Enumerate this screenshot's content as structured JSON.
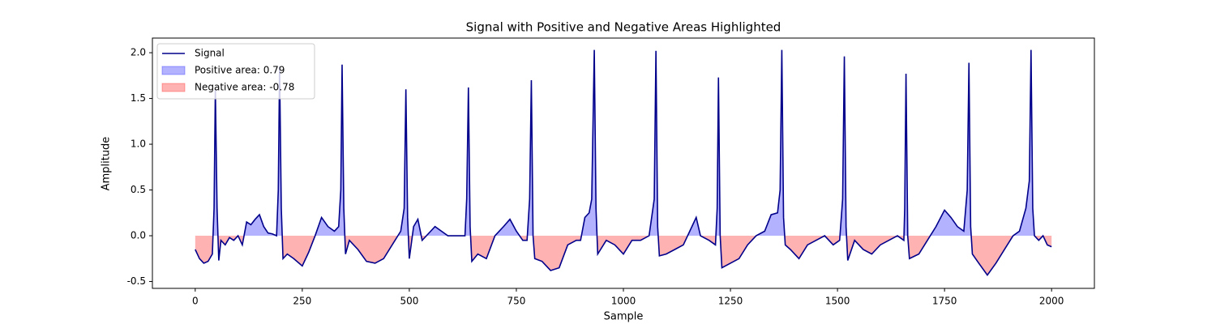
{
  "chart_data": {
    "type": "line",
    "title": "Signal with Positive and Negative Areas Highlighted",
    "x_label": "Sample",
    "y_label": "Amplitude",
    "xlim": [
      -100,
      2100
    ],
    "ylim": [
      -0.575,
      2.16
    ],
    "xticks": [
      0,
      250,
      500,
      750,
      1000,
      1250,
      1500,
      1750,
      2000
    ],
    "yticks": [
      -0.5,
      {
        "value": 0,
        "label": "0.0"
      },
      0.5,
      {
        "value": 1,
        "label": "1.0"
      },
      1.5,
      {
        "value": 2,
        "label": "2.0"
      }
    ],
    "legend": "upper left",
    "x": [
      0,
      10,
      20,
      30,
      40,
      44,
      47,
      51,
      55,
      60,
      70,
      80,
      90,
      100,
      110,
      120,
      130,
      140,
      150,
      160,
      170,
      180,
      190,
      194,
      197,
      201,
      205,
      215,
      230,
      250,
      265,
      280,
      295,
      310,
      325,
      335,
      340,
      343,
      347,
      351,
      360,
      380,
      400,
      420,
      440,
      460,
      480,
      488,
      492,
      496,
      500,
      510,
      520,
      530,
      550,
      560,
      575,
      590,
      610,
      630,
      634,
      638,
      642,
      646,
      660,
      680,
      700,
      720,
      735,
      750,
      765,
      775,
      781,
      785,
      789,
      793,
      810,
      830,
      850,
      870,
      890,
      900,
      910,
      920,
      926,
      932,
      936,
      940,
      960,
      980,
      1000,
      1020,
      1040,
      1060,
      1072,
      1076,
      1080,
      1084,
      1100,
      1120,
      1140,
      1160,
      1170,
      1180,
      1200,
      1215,
      1219,
      1222,
      1226,
      1230,
      1250,
      1270,
      1290,
      1310,
      1330,
      1345,
      1360,
      1366,
      1370,
      1374,
      1378,
      1390,
      1410,
      1430,
      1450,
      1470,
      1490,
      1505,
      1512,
      1516,
      1520,
      1524,
      1540,
      1560,
      1580,
      1600,
      1620,
      1640,
      1655,
      1657,
      1660,
      1664,
      1668,
      1690,
      1710,
      1730,
      1750,
      1765,
      1780,
      1795,
      1803,
      1807,
      1811,
      1815,
      1830,
      1850,
      1870,
      1890,
      1910,
      1925,
      1940,
      1948,
      1952,
      1956,
      1960,
      1970,
      1980,
      1990,
      2000
    ],
    "series": [
      {
        "name": "Signal",
        "color": "#00008b",
        "values": [
          -0.15,
          -0.25,
          -0.3,
          -0.28,
          -0.2,
          0.3,
          1.6,
          0.3,
          -0.27,
          -0.05,
          -0.1,
          -0.02,
          -0.05,
          0.0,
          -0.1,
          0.15,
          0.12,
          0.18,
          0.23,
          0.1,
          0.03,
          0.02,
          0.0,
          0.5,
          1.85,
          0.3,
          -0.25,
          -0.2,
          -0.25,
          -0.33,
          -0.18,
          0.0,
          0.2,
          0.1,
          0.05,
          0.1,
          0.5,
          1.87,
          0.3,
          -0.2,
          -0.05,
          -0.15,
          -0.28,
          -0.3,
          -0.25,
          -0.1,
          0.05,
          0.3,
          1.6,
          0.2,
          -0.25,
          0.1,
          0.18,
          -0.05,
          0.05,
          0.1,
          0.05,
          0.0,
          0.0,
          0.0,
          0.4,
          1.62,
          0.1,
          -0.28,
          -0.2,
          -0.25,
          0.0,
          0.1,
          0.18,
          0.05,
          -0.05,
          -0.05,
          0.4,
          1.7,
          0.0,
          -0.25,
          -0.28,
          -0.38,
          -0.35,
          -0.1,
          -0.05,
          -0.05,
          0.2,
          0.25,
          0.4,
          2.03,
          0.3,
          -0.2,
          -0.05,
          -0.1,
          -0.2,
          -0.05,
          -0.05,
          0.0,
          0.4,
          2.02,
          0.1,
          -0.22,
          -0.2,
          -0.15,
          -0.1,
          0.1,
          0.2,
          0.0,
          -0.05,
          -0.1,
          0.3,
          1.73,
          0.0,
          -0.35,
          -0.3,
          -0.25,
          -0.1,
          0.0,
          0.05,
          0.23,
          0.25,
          0.5,
          2.03,
          0.2,
          -0.1,
          -0.15,
          -0.25,
          -0.1,
          -0.05,
          0.0,
          -0.1,
          -0.05,
          0.4,
          1.96,
          0.1,
          -0.27,
          -0.05,
          -0.15,
          -0.2,
          -0.1,
          -0.05,
          0.0,
          -0.05,
          0.3,
          1.77,
          0.0,
          -0.25,
          -0.2,
          -0.05,
          0.1,
          0.28,
          0.2,
          0.1,
          0.05,
          0.5,
          1.89,
          0.1,
          -0.2,
          -0.3,
          -0.43,
          -0.3,
          -0.15,
          0.0,
          0.05,
          0.3,
          0.6,
          2.03,
          0.3,
          0.0,
          -0.05,
          0.0,
          -0.1,
          -0.12
        ]
      }
    ],
    "fills": [
      {
        "name": "Positive area: 0.79",
        "color": "#0000ff",
        "alpha": 0.3
      },
      {
        "name": "Negative area: -0.78",
        "color": "#ff0000",
        "alpha": 0.3
      }
    ]
  }
}
